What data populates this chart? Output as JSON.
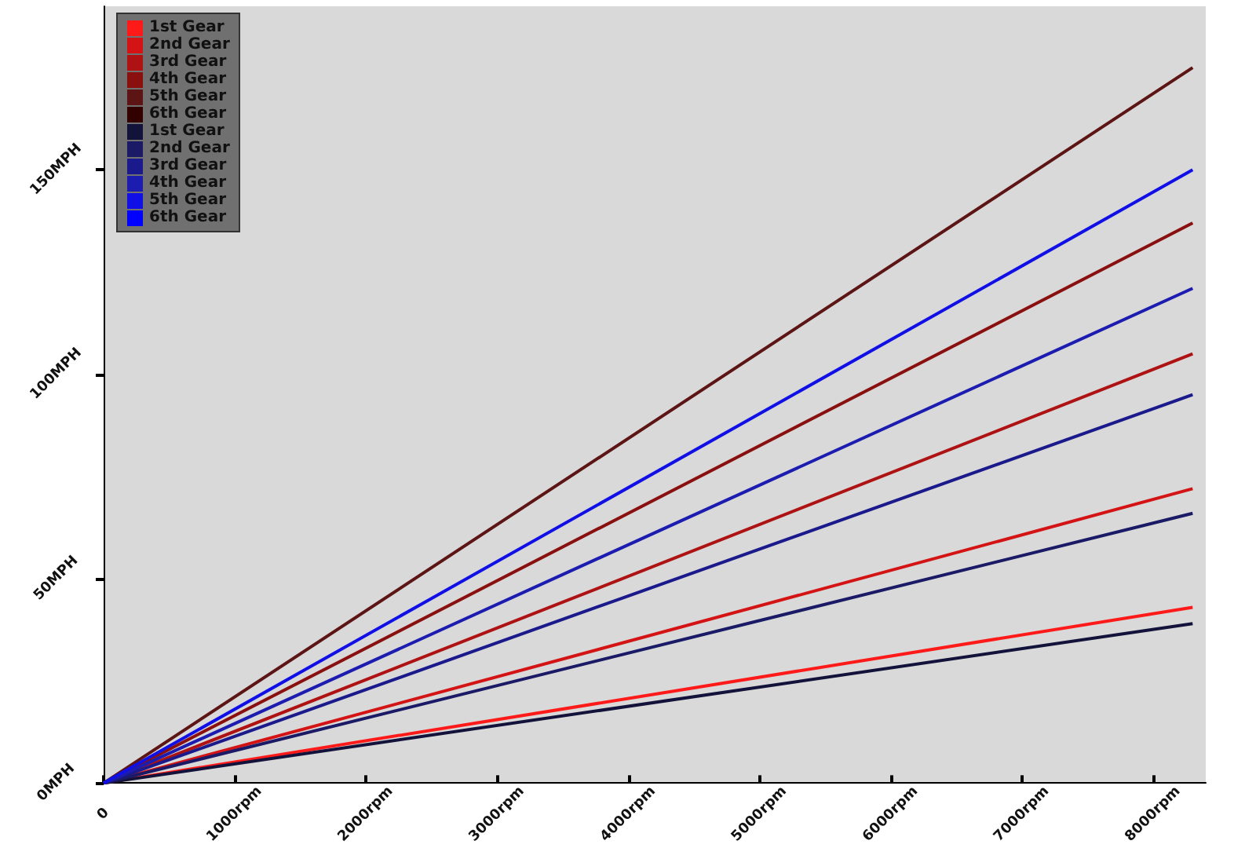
{
  "chart_data": {
    "type": "line",
    "x": [
      0,
      8300
    ],
    "xlim": [
      0,
      8400
    ],
    "xticks": [
      0,
      {
        "value": 1000,
        "label": "1000rpm"
      },
      {
        "value": 2000,
        "label": "2000rpm"
      },
      {
        "value": 3000,
        "label": "3000rpm"
      },
      {
        "value": 4000,
        "label": "4000rpm"
      },
      {
        "value": 5000,
        "label": "5000rpm"
      },
      {
        "value": 6000,
        "label": "6000rpm"
      },
      {
        "value": 7000,
        "label": "7000rpm"
      },
      {
        "value": 8000,
        "label": "8000rpm"
      }
    ],
    "ylim": [
      0,
      190
    ],
    "yticks": [
      {
        "value": 0,
        "label": "0MPH"
      },
      {
        "value": 50,
        "label": "50MPH"
      },
      {
        "value": 100,
        "label": "100MPH"
      },
      {
        "value": 150,
        "label": "150MPH"
      }
    ],
    "grid": false,
    "legend": "top left",
    "marker": "none",
    "line_style": "solid",
    "series": [
      {
        "name": "1st Gear",
        "color": "#ff1a1a",
        "values": [
          0,
          43
        ]
      },
      {
        "name": "2nd Gear",
        "color": "#d41414",
        "values": [
          0,
          72
        ]
      },
      {
        "name": "3rd Gear",
        "color": "#ae1212",
        "values": [
          0,
          105
        ]
      },
      {
        "name": "4th Gear",
        "color": "#8a1010",
        "values": [
          0,
          137
        ]
      },
      {
        "name": "5th Gear",
        "color": "#5c1414",
        "values": [
          0,
          175
        ]
      },
      {
        "name": "6th Gear",
        "color": "#330000",
        "values": [
          null,
          null
        ]
      },
      {
        "name": "1st Gear",
        "color": "#12123a",
        "values": [
          0,
          39
        ]
      },
      {
        "name": "2nd Gear",
        "color": "#1a1a66",
        "values": [
          0,
          66
        ]
      },
      {
        "name": "3rd Gear",
        "color": "#1a1a8c",
        "values": [
          0,
          95
        ]
      },
      {
        "name": "4th Gear",
        "color": "#1c1cb0",
        "values": [
          0,
          121
        ]
      },
      {
        "name": "5th Gear",
        "color": "#1010e6",
        "values": [
          0,
          150
        ]
      },
      {
        "name": "6th Gear",
        "color": "#0000ff",
        "values": [
          null,
          null
        ]
      }
    ]
  }
}
